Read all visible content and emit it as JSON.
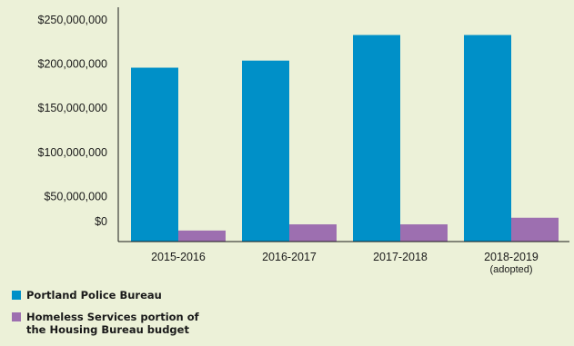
{
  "chart_data": {
    "type": "bar",
    "categories": [
      "2015-2016",
      "2016-2017",
      "2017-2018",
      "2018-2019"
    ],
    "category_sublabels": [
      "",
      "",
      "",
      "(adopted)"
    ],
    "series": [
      {
        "name": "Portland Police Bureau",
        "color": "#0090c8",
        "values": [
          197000000,
          205000000,
          234000000,
          234000000
        ]
      },
      {
        "name": "Homeless Services portion of the Housing Bureau budget",
        "color": "#9d6fb0",
        "values": [
          12500000,
          19500000,
          19500000,
          27000000
        ]
      }
    ],
    "yticks": [
      {
        "value": 0,
        "label": "$0"
      },
      {
        "value": 50000000,
        "label": "$50,000,000"
      },
      {
        "value": 100000000,
        "label": "$100,000,000"
      },
      {
        "value": 150000000,
        "label": "$150,000,000"
      },
      {
        "value": 200000000,
        "label": "$200,000,000"
      },
      {
        "value": 250000000,
        "label": "$250,000,000"
      }
    ],
    "ylim": [
      0,
      250000000
    ],
    "title": "",
    "xlabel": "",
    "ylabel": "",
    "grid": false,
    "legend_position": "bottom-left",
    "background": "#ecf1d8"
  }
}
